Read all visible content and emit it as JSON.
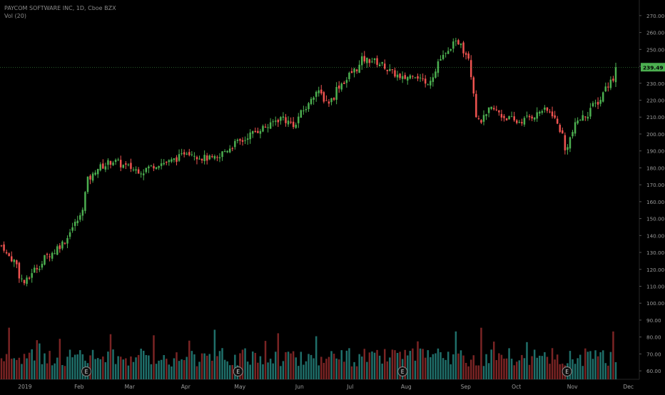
{
  "header": {
    "symbol_line": "PAYCOM SOFTWARE INC, 1D, Cboe BZX",
    "volume_line": "Vol (20)"
  },
  "colors": {
    "up": "#4caf50",
    "down": "#ef5350",
    "vol_up": "#1f6f6a",
    "vol_down": "#7a2424",
    "price_line": "#4caf50",
    "axis_text": "#9a9a9a",
    "background": "#000000"
  },
  "chart_data": {
    "type": "candlestick",
    "price_axis": {
      "ticks": [
        "270.00",
        "260.00",
        "250.00",
        "240.00",
        "230.00",
        "220.00",
        "210.00",
        "200.00",
        "190.00",
        "180.00",
        "170.00",
        "160.00",
        "150.00",
        "140.00",
        "130.00",
        "120.00",
        "110.00",
        "100.00",
        "90.00",
        "80.00",
        "70.00",
        "60.00"
      ],
      "range": [
        55,
        275
      ]
    },
    "last_price_label": "239.49",
    "last_price": 239.49,
    "x_axis_labels": [
      {
        "label": "2019",
        "date": "2019-01-02"
      },
      {
        "label": "Feb",
        "date": "2019-02-01"
      },
      {
        "label": "Mar",
        "date": "2019-03-01"
      },
      {
        "label": "Apr",
        "date": "2019-04-01"
      },
      {
        "label": "May",
        "date": "2019-05-01"
      },
      {
        "label": "Jun",
        "date": "2019-06-03"
      },
      {
        "label": "Jul",
        "date": "2019-07-01"
      },
      {
        "label": "Aug",
        "date": "2019-08-01"
      },
      {
        "label": "Sep",
        "date": "2019-09-03"
      },
      {
        "label": "Oct",
        "date": "2019-10-01"
      },
      {
        "label": "Nov",
        "date": "2019-11-01"
      },
      {
        "label": "Dec",
        "date": "2019-12-02"
      }
    ],
    "earnings_markers": [
      {
        "label": "E",
        "date": "2019-02-05"
      },
      {
        "label": "E",
        "date": "2019-04-30"
      },
      {
        "label": "E",
        "date": "2019-07-30"
      },
      {
        "label": "E",
        "date": "2019-10-29"
      }
    ],
    "close_path": [
      [
        "2018-12-20",
        134
      ],
      [
        "2018-12-27",
        125
      ],
      [
        "2019-01-02",
        112
      ],
      [
        "2019-01-08",
        120
      ],
      [
        "2019-01-15",
        128
      ],
      [
        "2019-01-22",
        134
      ],
      [
        "2019-01-29",
        145
      ],
      [
        "2019-02-04",
        157
      ],
      [
        "2019-02-06",
        173
      ],
      [
        "2019-02-12",
        180
      ],
      [
        "2019-02-20",
        184
      ],
      [
        "2019-03-01",
        180
      ],
      [
        "2019-03-08",
        178
      ],
      [
        "2019-03-15",
        182
      ],
      [
        "2019-03-25",
        184
      ],
      [
        "2019-04-02",
        190
      ],
      [
        "2019-04-10",
        186
      ],
      [
        "2019-04-18",
        185
      ],
      [
        "2019-04-26",
        193
      ],
      [
        "2019-05-02",
        196
      ],
      [
        "2019-05-10",
        202
      ],
      [
        "2019-05-17",
        205
      ],
      [
        "2019-05-24",
        210
      ],
      [
        "2019-05-31",
        205
      ],
      [
        "2019-06-05",
        214
      ],
      [
        "2019-06-12",
        225
      ],
      [
        "2019-06-19",
        219
      ],
      [
        "2019-06-26",
        230
      ],
      [
        "2019-07-01",
        235
      ],
      [
        "2019-07-08",
        244
      ],
      [
        "2019-07-15",
        243
      ],
      [
        "2019-07-22",
        238
      ],
      [
        "2019-07-29",
        232
      ],
      [
        "2019-08-05",
        236
      ],
      [
        "2019-08-12",
        229
      ],
      [
        "2019-08-19",
        243
      ],
      [
        "2019-08-26",
        252
      ],
      [
        "2019-08-30",
        255
      ],
      [
        "2019-09-04",
        246
      ],
      [
        "2019-09-06",
        225
      ],
      [
        "2019-09-10",
        207
      ],
      [
        "2019-09-17",
        215
      ],
      [
        "2019-09-24",
        210
      ],
      [
        "2019-10-01",
        207
      ],
      [
        "2019-10-08",
        210
      ],
      [
        "2019-10-15",
        214
      ],
      [
        "2019-10-21",
        212
      ],
      [
        "2019-10-28",
        190
      ],
      [
        "2019-11-01",
        205
      ],
      [
        "2019-11-08",
        212
      ],
      [
        "2019-11-15",
        220
      ],
      [
        "2019-11-22",
        233
      ],
      [
        "2019-11-25",
        239.49
      ]
    ]
  }
}
